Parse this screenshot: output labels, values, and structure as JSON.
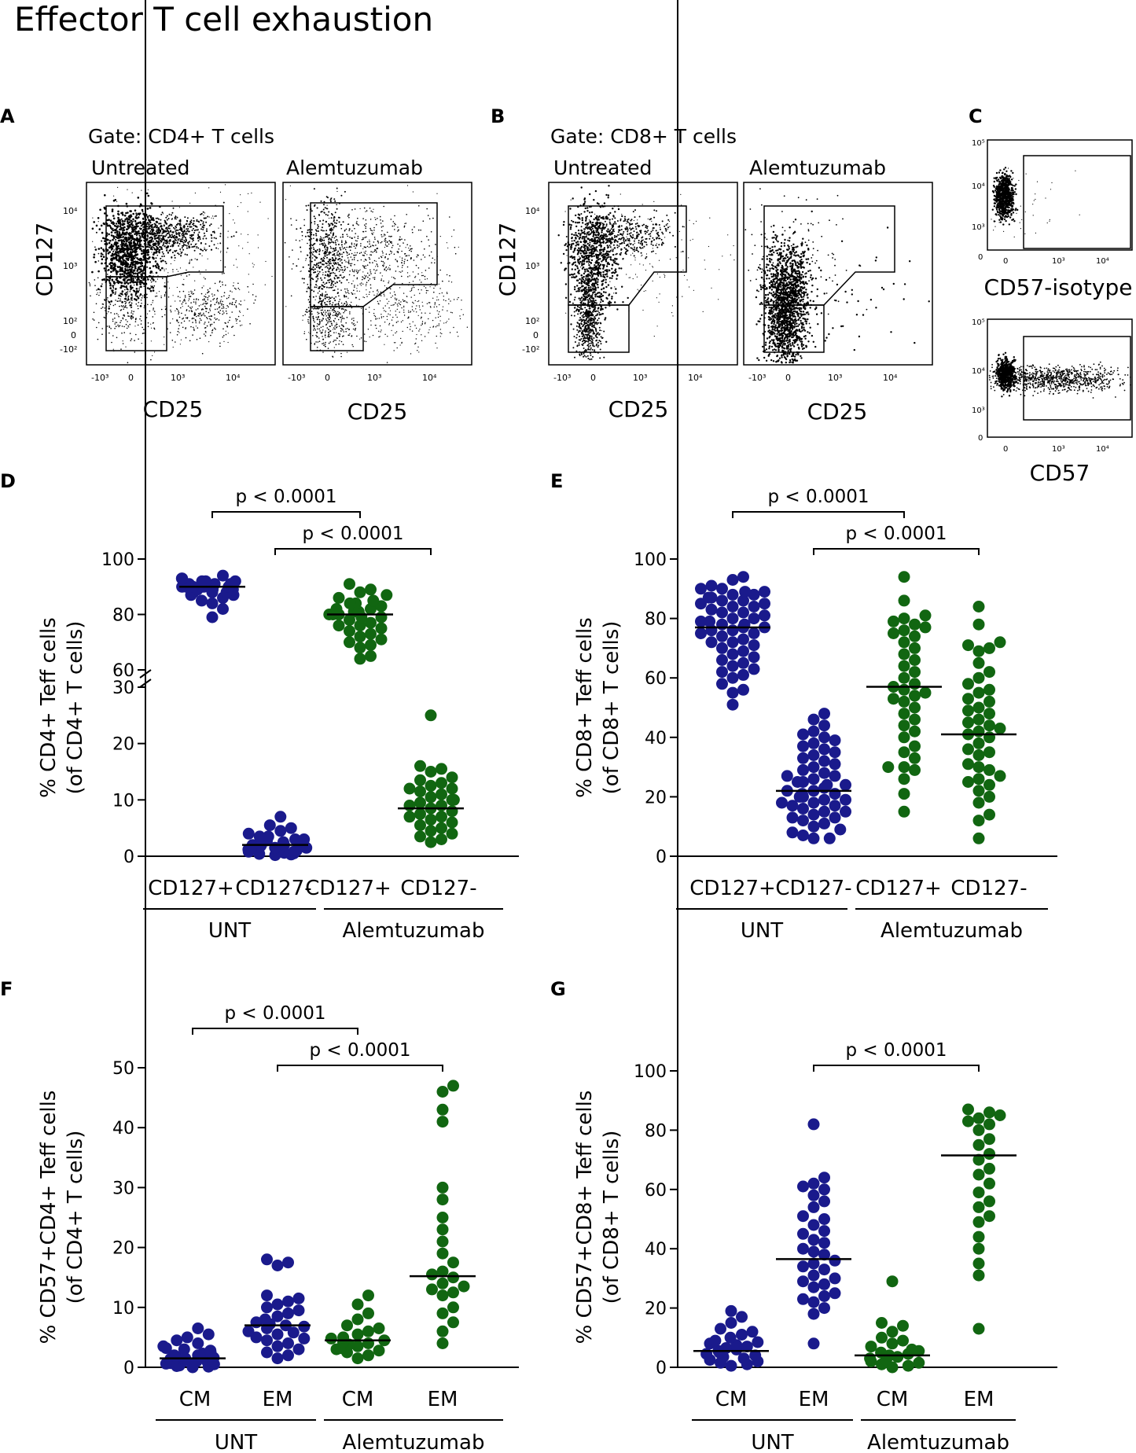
{
  "figure_title": "Effector T cell exhaustion",
  "colors": {
    "untreated": "#1a1a8c",
    "alemtuzumab": "#116611",
    "axis": "#000000"
  },
  "flow_panels": {
    "A": {
      "letter": "A",
      "gate": "Gate: CD4+ T cells",
      "left_title": "Untreated",
      "right_title": "Alemtuzumab",
      "ylabel": "CD127",
      "xlabel": "CD25"
    },
    "B": {
      "letter": "B",
      "gate": "Gate: CD8+ T cells",
      "left_title": "Untreated",
      "right_title": "Alemtuzumab",
      "ylabel": "CD127",
      "xlabel": "CD25"
    },
    "C": {
      "letter": "C",
      "top_label": "CD57-isotype",
      "bottom_label": "CD57"
    },
    "x_ticks": [
      "-10³",
      "0",
      "10³",
      "10⁴"
    ],
    "y_ticks": [
      "10⁴",
      "10³",
      "10²",
      "0",
      "-10²"
    ],
    "c_x_ticks": [
      "0",
      "10³",
      "10⁴"
    ],
    "c_y_ticks": [
      "10⁵",
      "10⁴",
      "10³",
      "0"
    ]
  },
  "chart_data": [
    {
      "panel": "D",
      "type": "scatter",
      "ylabel_line1": "% CD4+ Teff cells",
      "ylabel_line2": "(of CD4+ T cells)",
      "categories": [
        "CD127+",
        "CD127-",
        "CD127+",
        "CD127-"
      ],
      "groups": [
        "UNT",
        "Alemtuzumab"
      ],
      "broken_axis": true,
      "lower_range": [
        0,
        30
      ],
      "upper_range": [
        60,
        100
      ],
      "yticks_lower": [
        0,
        10,
        20,
        30
      ],
      "yticks_upper": [
        60,
        80,
        100
      ],
      "medians": [
        90,
        2,
        80,
        8.5
      ],
      "series": [
        {
          "name": "UNT CD127+",
          "group": "UNT",
          "values": [
            94,
            93,
            93,
            92,
            92,
            92,
            91,
            91,
            91,
            91,
            90,
            90,
            90,
            90,
            90,
            90,
            89,
            89,
            89,
            89,
            88,
            88,
            88,
            87,
            87,
            86,
            85,
            84,
            82,
            79
          ]
        },
        {
          "name": "UNT CD127-",
          "group": "UNT",
          "values": [
            7,
            5.5,
            5,
            4.5,
            4,
            3.5,
            3.5,
            3,
            3,
            2.8,
            2.5,
            2.5,
            2.2,
            2,
            2,
            2,
            1.8,
            1.5,
            1.5,
            1.3,
            1.2,
            1,
            1,
            0.8,
            0.8,
            0.6,
            0.5,
            0.4,
            0.3,
            0.2
          ]
        },
        {
          "name": "Alemtuzumab CD127+",
          "group": "Alemtuzumab",
          "values": [
            91,
            89,
            88,
            87,
            86,
            85,
            84,
            84,
            83,
            82,
            82,
            81,
            81,
            80,
            80,
            80,
            79,
            79,
            78,
            77,
            76,
            76,
            75,
            74,
            73,
            72,
            71,
            70,
            69,
            68,
            65,
            64
          ]
        },
        {
          "name": "Alemtuzumab CD127-",
          "group": "Alemtuzumab",
          "values": [
            25,
            16,
            15.5,
            15,
            14,
            13.5,
            13,
            12.5,
            12,
            12,
            11.5,
            11,
            10.5,
            10,
            10,
            9.5,
            9,
            9,
            8.5,
            8,
            7.5,
            7,
            7,
            6.5,
            6,
            5.5,
            5,
            4.5,
            4,
            3.5,
            3,
            2.5
          ]
        }
      ],
      "comparisons": [
        {
          "from": 0,
          "to": 2,
          "label": "p < 0.0001"
        },
        {
          "from": 1,
          "to": 3,
          "label": "p < 0.0001"
        }
      ]
    },
    {
      "panel": "E",
      "type": "scatter",
      "ylabel_line1": "% CD8+ Teff cells",
      "ylabel_line2": "(of CD8+ T cells)",
      "categories": [
        "CD127+",
        "CD127-",
        "CD127+",
        "CD127-"
      ],
      "groups": [
        "UNT",
        "Alemtuzumab"
      ],
      "ylim": [
        0,
        100
      ],
      "yticks": [
        0,
        20,
        40,
        60,
        80,
        100
      ],
      "medians": [
        77,
        22,
        57,
        41
      ],
      "series": [
        {
          "name": "UNT CD127+",
          "group": "UNT",
          "values": [
            94,
            93,
            91,
            90,
            90,
            89,
            89,
            88,
            88,
            87,
            87,
            86,
            86,
            85,
            85,
            84,
            84,
            83,
            82,
            82,
            81,
            80,
            80,
            79,
            79,
            78,
            78,
            77,
            77,
            76,
            76,
            75,
            75,
            74,
            73,
            72,
            72,
            71,
            70,
            69,
            68,
            67,
            66,
            65,
            64,
            63,
            62,
            61,
            60,
            58,
            56,
            55,
            51
          ]
        },
        {
          "name": "UNT CD127-",
          "group": "UNT",
          "values": [
            48,
            46,
            44,
            42,
            41,
            40,
            39,
            38,
            37,
            36,
            35,
            34,
            33,
            32,
            31,
            30,
            29,
            28,
            27,
            27,
            26,
            25,
            25,
            24,
            24,
            23,
            22,
            22,
            21,
            21,
            20,
            20,
            19,
            19,
            18,
            18,
            17,
            17,
            16,
            15,
            15,
            14,
            13,
            13,
            12,
            11,
            10,
            9,
            8,
            7,
            6,
            6
          ]
        },
        {
          "name": "Alemtuzumab CD127+",
          "group": "Alemtuzumab",
          "values": [
            94,
            86,
            81,
            80,
            79,
            78,
            77,
            76,
            75,
            74,
            72,
            70,
            68,
            66,
            64,
            62,
            60,
            58,
            57,
            56,
            55,
            54,
            53,
            52,
            50,
            48,
            46,
            44,
            42,
            40,
            37,
            35,
            33,
            30,
            30,
            29,
            26,
            21,
            15
          ]
        },
        {
          "name": "Alemtuzumab CD127-",
          "group": "Alemtuzumab",
          "values": [
            84,
            78,
            72,
            71,
            70,
            69,
            65,
            62,
            60,
            58,
            56,
            55,
            53,
            52,
            50,
            49,
            48,
            46,
            45,
            44,
            43,
            42,
            41,
            40,
            38,
            36,
            35,
            34,
            31,
            30,
            29,
            27,
            26,
            25,
            24,
            22,
            20,
            18,
            14,
            12,
            6
          ]
        }
      ],
      "comparisons": [
        {
          "from": 0,
          "to": 2,
          "label": "p < 0.0001"
        },
        {
          "from": 1,
          "to": 3,
          "label": "p < 0.0001"
        }
      ]
    },
    {
      "panel": "F",
      "type": "scatter",
      "ylabel_line1": "% CD57+CD4+ Teff cells",
      "ylabel_line2": "(of CD4+ T cells)",
      "categories": [
        "CM",
        "EM",
        "CM",
        "EM"
      ],
      "groups": [
        "UNT",
        "Alemtuzumab"
      ],
      "ylim": [
        0,
        50
      ],
      "yticks": [
        0,
        10,
        20,
        30,
        40,
        50
      ],
      "medians": [
        1.5,
        7,
        4.5,
        15.2
      ],
      "series": [
        {
          "name": "UNT CM",
          "group": "UNT",
          "values": [
            6.5,
            5.5,
            5,
            4.5,
            4,
            3.5,
            3.2,
            3,
            2.8,
            2.5,
            2.3,
            2,
            2,
            1.8,
            1.6,
            1.5,
            1.4,
            1.2,
            1.1,
            1,
            0.9,
            0.8,
            0.7,
            0.6,
            0.5,
            0.4,
            0.3,
            0.2,
            0.1,
            0
          ]
        },
        {
          "name": "UNT EM",
          "group": "UNT",
          "values": [
            18,
            17.5,
            17,
            12,
            11.5,
            11,
            10.5,
            10,
            9.5,
            9,
            8.5,
            8,
            7.5,
            7.2,
            7,
            6.8,
            6.5,
            6,
            5.8,
            5.5,
            5,
            4.8,
            4.5,
            4,
            3.5,
            3,
            2.5,
            2,
            1.5
          ]
        },
        {
          "name": "Alemtuzumab CM",
          "group": "Alemtuzumab",
          "values": [
            12,
            10.5,
            9,
            8,
            7,
            6.5,
            6,
            5.5,
            5,
            4.8,
            4.5,
            4.2,
            4,
            3.8,
            3.5,
            3.2,
            3,
            2.8,
            2.5,
            2,
            1.5
          ]
        },
        {
          "name": "Alemtuzumab EM",
          "group": "Alemtuzumab",
          "values": [
            47,
            46,
            43,
            41,
            30,
            28,
            25,
            23,
            21,
            19,
            17.5,
            16,
            15.5,
            15,
            14,
            13.5,
            13,
            12.5,
            12,
            10,
            9,
            7.5,
            6,
            4
          ]
        }
      ],
      "comparisons": [
        {
          "from": 0,
          "to": 2,
          "label": "p < 0.0001"
        },
        {
          "from": 1,
          "to": 3,
          "label": "p < 0.0001"
        }
      ]
    },
    {
      "panel": "G",
      "type": "scatter",
      "ylabel_line1": "% CD57+CD8+ Teff cells",
      "ylabel_line2": "(of CD8+ T cells)",
      "categories": [
        "CM",
        "EM",
        "CM",
        "EM"
      ],
      "groups": [
        "UNT",
        "Alemtuzumab"
      ],
      "ylim": [
        0,
        100
      ],
      "yticks": [
        0,
        20,
        40,
        60,
        80,
        100
      ],
      "medians": [
        5.5,
        36.5,
        4,
        71.5
      ],
      "series": [
        {
          "name": "UNT CM",
          "group": "UNT",
          "values": [
            19,
            17,
            15,
            13,
            12,
            11,
            10,
            9,
            8.5,
            8,
            7.5,
            7,
            6.5,
            6,
            5.5,
            5,
            4.5,
            4,
            3.5,
            3,
            2.5,
            2,
            1.5,
            1,
            0.5
          ]
        },
        {
          "name": "UNT EM",
          "group": "UNT",
          "values": [
            82,
            64,
            62,
            61,
            60,
            58,
            56,
            54,
            51,
            50,
            48,
            46,
            45,
            43,
            42,
            40,
            39,
            38,
            36,
            35,
            34,
            33,
            31,
            30,
            29,
            28,
            27,
            25,
            24,
            23,
            22,
            20,
            18,
            8
          ]
        },
        {
          "name": "Alemtuzumab CM",
          "group": "Alemtuzumab",
          "values": [
            29,
            15,
            14,
            12,
            10,
            9,
            8,
            7,
            6,
            5.5,
            5,
            4.5,
            4,
            3.5,
            3,
            2.5,
            2,
            1.5,
            1,
            0.5,
            0
          ]
        },
        {
          "name": "Alemtuzumab EM",
          "group": "Alemtuzumab",
          "values": [
            87,
            86,
            85,
            84,
            83,
            82,
            80,
            77,
            75,
            72,
            70,
            67,
            65,
            62,
            59,
            56,
            54,
            51,
            49,
            44,
            40,
            35,
            31,
            13
          ]
        }
      ],
      "comparisons": [
        {
          "from": 1,
          "to": 3,
          "label": "p < 0.0001"
        }
      ]
    }
  ]
}
